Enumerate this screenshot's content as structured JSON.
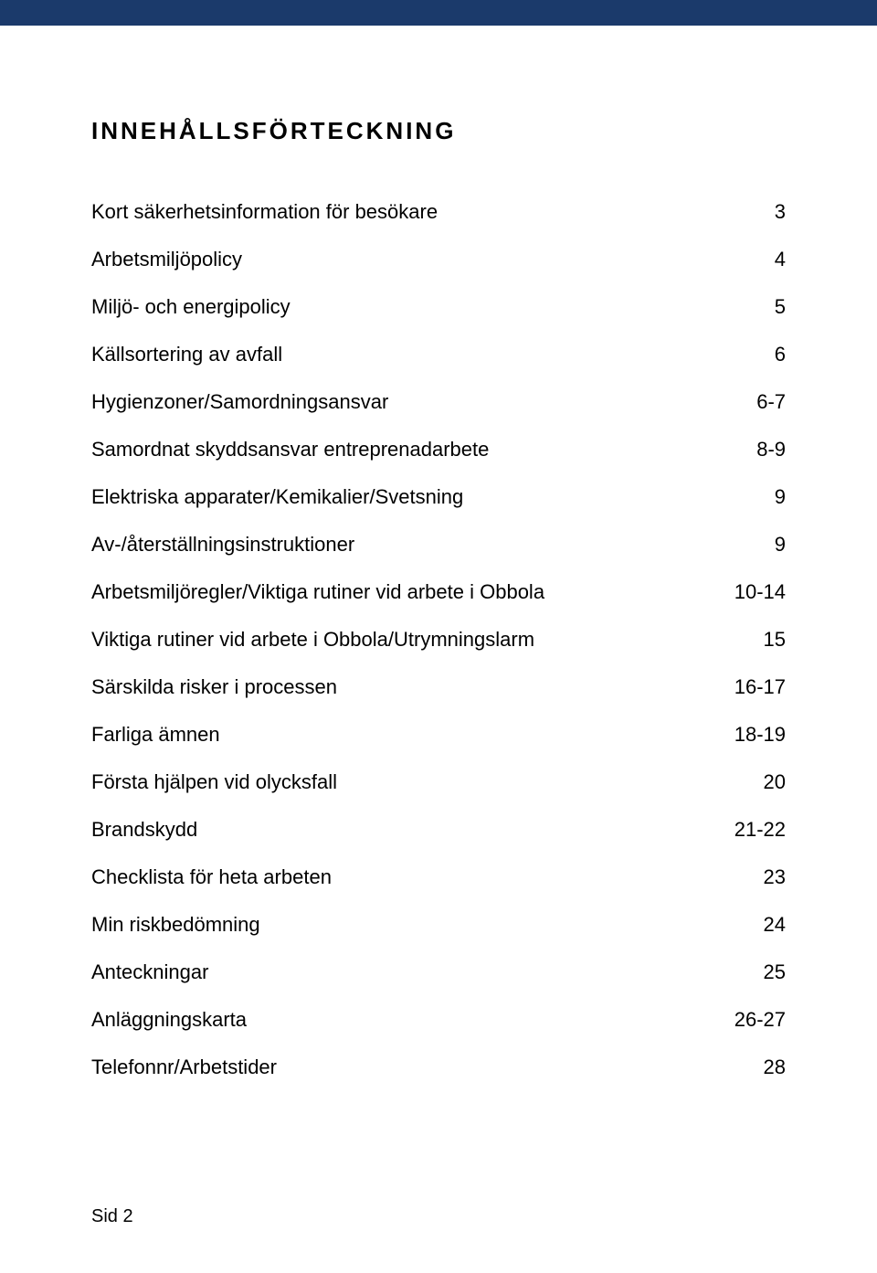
{
  "header_bar_color": "#1b3a6b",
  "background_color": "#ffffff",
  "text_color": "#000000",
  "title": "INNEHÅLLSFÖRTECKNING",
  "title_fontsize": 26,
  "title_letterspacing": 3,
  "body_fontsize": 22,
  "line_spacing": 26,
  "toc": [
    {
      "label": "Kort säkerhetsinformation för besökare",
      "page": "3"
    },
    {
      "label": "Arbetsmiljöpolicy",
      "page": "4"
    },
    {
      "label": "Miljö- och energipolicy",
      "page": "5"
    },
    {
      "label": "Källsortering av avfall",
      "page": "6"
    },
    {
      "label": "Hygienzoner/Samordningsansvar",
      "page": "6-7"
    },
    {
      "label": "Samordnat skyddsansvar entreprenadarbete",
      "page": "8-9"
    },
    {
      "label": "Elektriska apparater/Kemikalier/Svetsning",
      "page": "9"
    },
    {
      "label": "Av-/återställningsinstruktioner",
      "page": "9"
    },
    {
      "label": "Arbetsmiljöregler/Viktiga rutiner vid arbete i Obbola",
      "page": "10-14"
    },
    {
      "label": "Viktiga rutiner vid arbete i Obbola/Utrymningslarm",
      "page": "15"
    },
    {
      "label": "Särskilda risker i processen",
      "page": "16-17"
    },
    {
      "label": "Farliga ämnen",
      "page": "18-19"
    },
    {
      "label": "Första hjälpen vid olycksfall",
      "page": "20"
    },
    {
      "label": "Brandskydd",
      "page": "21-22"
    },
    {
      "label": "Checklista för heta arbeten",
      "page": "23"
    },
    {
      "label": "Min riskbedömning",
      "page": "24"
    },
    {
      "label": "Anteckningar",
      "page": "25"
    },
    {
      "label": "Anläggningskarta",
      "page": "26-27"
    },
    {
      "label": "Telefonnr/Arbetstider",
      "page": "28"
    }
  ],
  "page_number": "Sid 2"
}
